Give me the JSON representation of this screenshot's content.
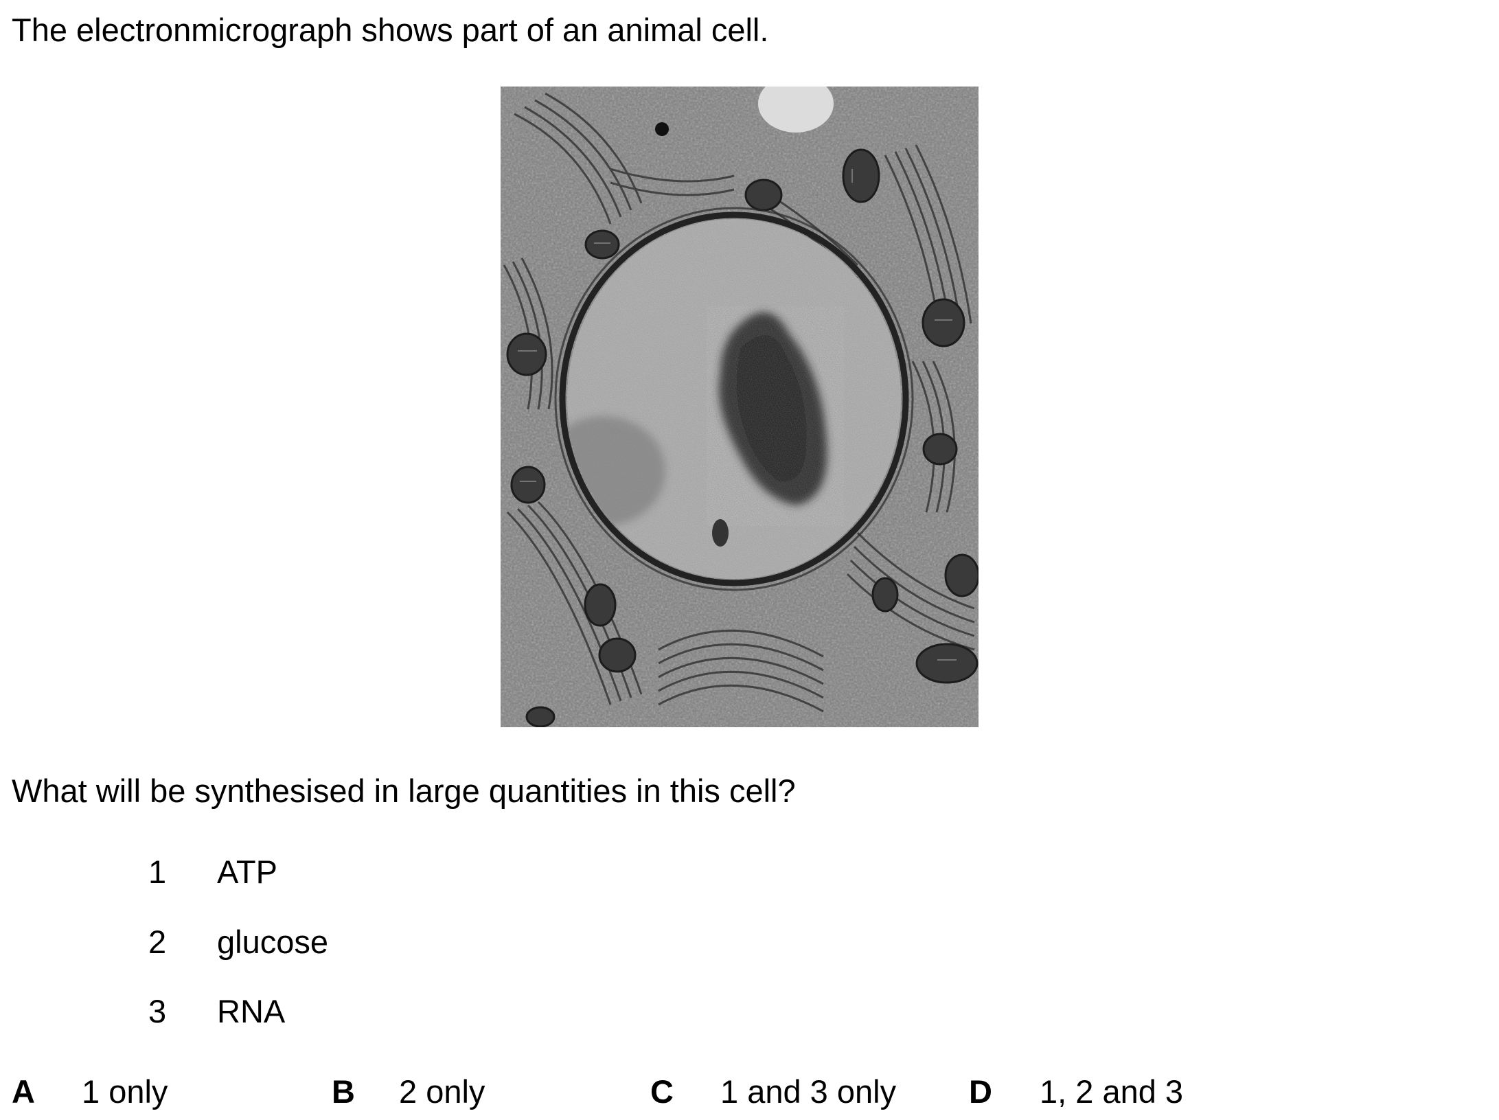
{
  "intro": "The electronmicrograph shows part of an animal cell.",
  "question": "What will be synthesised in large quantities in this cell?",
  "statements": [
    {
      "number": "1",
      "text": "ATP"
    },
    {
      "number": "2",
      "text": "glucose"
    },
    {
      "number": "3",
      "text": "RNA"
    }
  ],
  "options": [
    {
      "letter": "A",
      "text": "1 only"
    },
    {
      "letter": "B",
      "text": "2 only"
    },
    {
      "letter": "C",
      "text": "1 and 3 only"
    },
    {
      "letter": "D",
      "text": "1, 2 and 3"
    }
  ]
}
